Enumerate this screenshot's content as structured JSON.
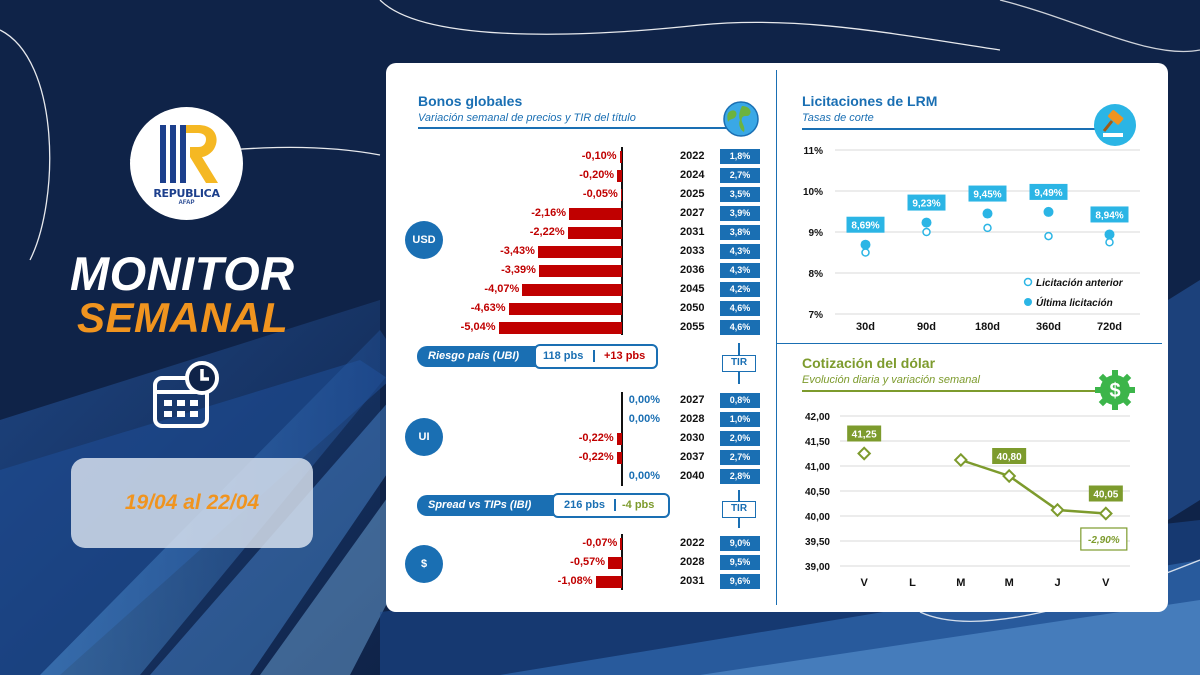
{
  "brand": {
    "name": "REPUBLICA",
    "sub": "AFAP"
  },
  "title": {
    "line1": "MONITOR",
    "line2": "SEMANAL"
  },
  "period": "19/04 al 22/04",
  "colors": {
    "navy": "#0f2348",
    "orange": "#f0941f",
    "blue": "#1a6fb3",
    "red": "#c00000",
    "green": "#7d9b2d",
    "cyan": "#2bb5e5"
  },
  "bonos": {
    "title": "Bonos globales",
    "subtitle": "Variación semanal de precios y TIR del título",
    "icon": "globe-icon",
    "usd": {
      "label": "USD",
      "rows": [
        {
          "var": "-0,10%",
          "value": -0.1,
          "year": "2022",
          "tir": "1,8%"
        },
        {
          "var": "-0,20%",
          "value": -0.2,
          "year": "2024",
          "tir": "2,7%"
        },
        {
          "var": "-0,05%",
          "value": -0.05,
          "year": "2025",
          "tir": "3,5%"
        },
        {
          "var": "-2,16%",
          "value": -2.16,
          "year": "2027",
          "tir": "3,9%"
        },
        {
          "var": "-2,22%",
          "value": -2.22,
          "year": "2031",
          "tir": "3,8%"
        },
        {
          "var": "-3,43%",
          "value": -3.43,
          "year": "2033",
          "tir": "4,3%"
        },
        {
          "var": "-3,39%",
          "value": -3.39,
          "year": "2036",
          "tir": "4,3%"
        },
        {
          "var": "-4,07%",
          "value": -4.07,
          "year": "2045",
          "tir": "4,2%"
        },
        {
          "var": "-4,63%",
          "value": -4.63,
          "year": "2050",
          "tir": "4,6%"
        },
        {
          "var": "-5,04%",
          "value": -5.04,
          "year": "2055",
          "tir": "4,6%"
        }
      ]
    },
    "riesgo": {
      "label": "Riesgo país (UBI)",
      "value": "118 pbs",
      "change": "+13 pbs"
    },
    "tir_label": "TIR",
    "ui": {
      "label": "UI",
      "rows": [
        {
          "var": "0,00%",
          "value": 0,
          "year": "2027",
          "tir": "0,8%"
        },
        {
          "var": "0,00%",
          "value": 0,
          "year": "2028",
          "tir": "1,0%"
        },
        {
          "var": "-0,22%",
          "value": -0.22,
          "year": "2030",
          "tir": "2,0%"
        },
        {
          "var": "-0,22%",
          "value": -0.22,
          "year": "2037",
          "tir": "2,7%"
        },
        {
          "var": "0,00%",
          "value": 0,
          "year": "2040",
          "tir": "2,8%"
        }
      ]
    },
    "spread": {
      "label": "Spread vs TIPs (IBI)",
      "value": "216 pbs",
      "change": "-4 pbs"
    },
    "peso": {
      "label": "$",
      "rows": [
        {
          "var": "-0,07%",
          "value": -0.07,
          "year": "2022",
          "tir": "9,0%"
        },
        {
          "var": "-0,57%",
          "value": -0.57,
          "year": "2028",
          "tir": "9,5%"
        },
        {
          "var": "-1,08%",
          "value": -1.08,
          "year": "2031",
          "tir": "9,6%"
        }
      ]
    }
  },
  "chart_data": [
    {
      "type": "scatter",
      "title": "Licitaciones de LRM",
      "subtitle": "Tasas de corte",
      "categories": [
        "30d",
        "90d",
        "180d",
        "360d",
        "720d"
      ],
      "series": [
        {
          "name": "Licitación anterior",
          "values": [
            8.5,
            9.0,
            9.1,
            8.9,
            8.75
          ]
        },
        {
          "name": "Última licitación",
          "values": [
            8.69,
            9.23,
            9.45,
            9.49,
            8.94
          ]
        }
      ],
      "data_labels": [
        "8,69%",
        "9,23%",
        "9,45%",
        "9,49%",
        "8,94%"
      ],
      "yticks": [
        "7%",
        "8%",
        "9%",
        "10%",
        "11%"
      ],
      "ylim": [
        7,
        11
      ],
      "grid": true,
      "legend": "bottom-right"
    },
    {
      "type": "line",
      "title": "Cotización del dólar",
      "subtitle": "Evolución diaria y variación semanal",
      "categories": [
        "V",
        "L",
        "M",
        "M",
        "J",
        "V"
      ],
      "values": [
        41.25,
        null,
        41.12,
        40.8,
        40.12,
        40.05
      ],
      "data_labels": [
        {
          "index": 0,
          "text": "41,25"
        },
        {
          "index": 3,
          "text": "40,80"
        },
        {
          "index": 5,
          "text": "40,05"
        }
      ],
      "yticks": [
        "39,00",
        "39,50",
        "40,00",
        "40,50",
        "41,00",
        "41,50",
        "42,00"
      ],
      "ylim": [
        39,
        42
      ],
      "grid": true,
      "annotation": "-2,90%"
    }
  ],
  "icons": {
    "lrm": "gavel-icon",
    "dolar": "dollar-gear-icon",
    "calendar": "calendar-clock-icon"
  }
}
